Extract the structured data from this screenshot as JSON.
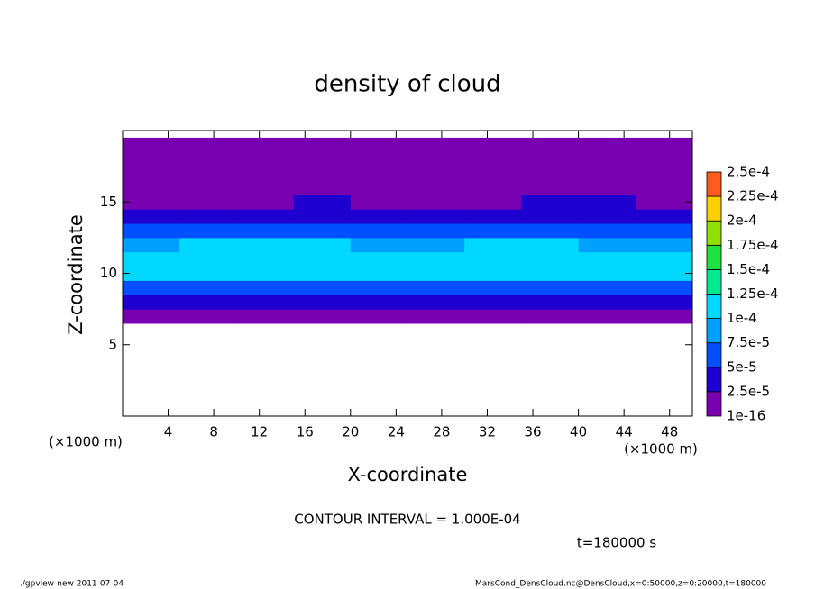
{
  "chart_data": {
    "type": "heatmap",
    "title": "density of cloud",
    "x_label": "X-coordinate",
    "y_label": "Z-coordinate",
    "x_unit": "(×1000 m)",
    "y_unit": "(×1000 m)",
    "contour_note": "CONTOUR INTERVAL = 1.000E-04",
    "time_note": "t=180000 s",
    "footer_left": "./gpview-new  2011-07-04",
    "footer_right": "MarsCond_DensCloud.nc@DensCloud,x=0:50000,z=0:20000,t=180000",
    "xlim": [
      0,
      50
    ],
    "ylim": [
      0,
      20
    ],
    "xticks": [
      4,
      8,
      12,
      16,
      20,
      24,
      28,
      32,
      36,
      40,
      44,
      48
    ],
    "yticks": [
      5,
      10,
      15
    ],
    "x": [
      2.5,
      7.5,
      12.5,
      17.5,
      22.5,
      27.5,
      32.5,
      37.5,
      42.5,
      47.5
    ],
    "y": [
      7,
      8,
      9,
      10,
      11,
      12,
      13,
      14,
      15,
      16,
      17,
      18,
      19
    ],
    "z": [
      [
        5e-06,
        4e-06,
        6e-06,
        5e-06,
        5e-06,
        4e-06,
        6e-06,
        5e-06,
        5e-06,
        4e-06
      ],
      [
        3.5e-05,
        3e-05,
        3.8e-05,
        3.2e-05,
        3e-05,
        3.6e-05,
        3.3e-05,
        3.1e-05,
        3.4e-05,
        3e-05
      ],
      [
        6.8e-05,
        6.5e-05,
        7.2e-05,
        7e-05,
        6.6e-05,
        6.9e-05,
        7.3e-05,
        6.7e-05,
        7e-05,
        6.6e-05
      ],
      [
        0.000102,
        0.000105,
        0.000108,
        0.000106,
        0.000103,
        0.000101,
        0.000107,
        0.000104,
        0.000106,
        0.000102
      ],
      [
        0.000108,
        0.000112,
        0.000115,
        0.00011,
        0.000109,
        0.000106,
        0.000113,
        0.000111,
        0.00011,
        0.000107
      ],
      [
        9.5e-05,
        0.000102,
        0.000104,
        0.000101,
        9.8e-05,
        9.6e-05,
        0.000103,
        0.0001,
        9.9e-05,
        9.7e-05
      ],
      [
        6.8e-05,
        7e-05,
        7.2e-05,
        6.9e-05,
        6.6e-05,
        6.5e-05,
        7.1e-05,
        6.8e-05,
        6.6e-05,
        6.5e-05
      ],
      [
        4.2e-05,
        4e-05,
        4.4e-05,
        4.1e-05,
        3.9e-05,
        3.8e-05,
        4.3e-05,
        4.5e-05,
        4e-05,
        3.9e-05
      ],
      [
        2.2e-05,
        2e-05,
        2.4e-05,
        2.6e-05,
        2.3e-05,
        2.1e-05,
        2e-05,
        2.7e-05,
        2.5e-05,
        2.2e-05
      ],
      [
        1.2e-05,
        1.1e-05,
        1.3e-05,
        1.5e-05,
        1.2e-05,
        1e-05,
        1.1e-05,
        1.4e-05,
        1.3e-05,
        1.2e-05
      ],
      [
        6e-06,
        5e-06,
        7e-06,
        6e-06,
        5e-06,
        5e-06,
        6e-06,
        7e-06,
        6e-06,
        5e-06
      ],
      [
        3e-06,
        3e-06,
        4e-06,
        3e-06,
        3e-06,
        2e-06,
        3e-06,
        4e-06,
        3e-06,
        3e-06
      ],
      [
        1e-06,
        1e-06,
        2e-06,
        1e-06,
        1e-06,
        1e-06,
        1e-06,
        2e-06,
        1e-06,
        1e-06
      ]
    ],
    "levels": [
      {
        "value": 1e-16,
        "label": "1e-16"
      },
      {
        "value": 2.5e-05,
        "label": "2.5e-5"
      },
      {
        "value": 5e-05,
        "label": "5e-5"
      },
      {
        "value": 7.5e-05,
        "label": "7.5e-5"
      },
      {
        "value": 0.0001,
        "label": "1e-4"
      },
      {
        "value": 0.000125,
        "label": "1.25e-4"
      },
      {
        "value": 0.00015,
        "label": "1.5e-4"
      },
      {
        "value": 0.000175,
        "label": "1.75e-4"
      },
      {
        "value": 0.0002,
        "label": "2e-4"
      },
      {
        "value": 0.000225,
        "label": "2.25e-4"
      },
      {
        "value": 0.00025,
        "label": "2.5e-4"
      }
    ],
    "colors": [
      "#7800b0",
      "#1e00d0",
      "#0050ff",
      "#00a0ff",
      "#00d8ff",
      "#00e890",
      "#20e040",
      "#90e000",
      "#ffd000",
      "#ff5a20"
    ]
  }
}
